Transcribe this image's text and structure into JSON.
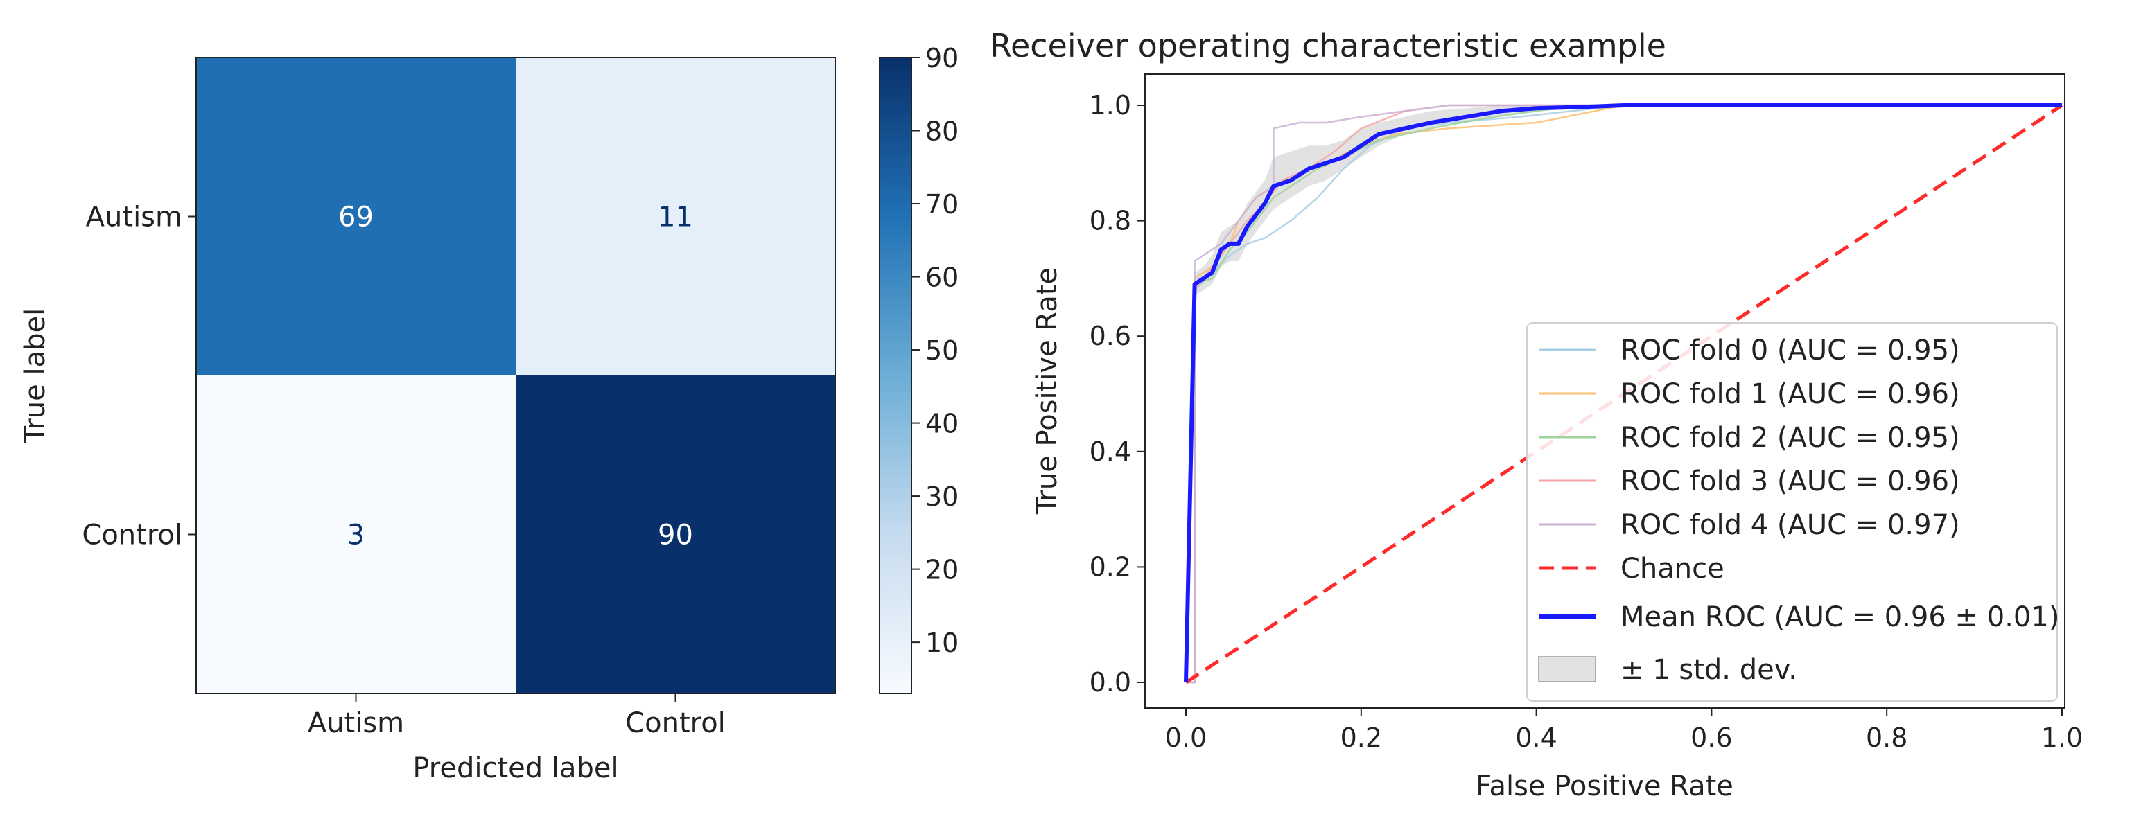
{
  "chart_data": [
    {
      "type": "heatmap",
      "title": "",
      "xlabel": "Predicted label",
      "ylabel": "True label",
      "x_categories": [
        "Autism",
        "Control"
      ],
      "y_categories": [
        "Autism",
        "Control"
      ],
      "values": [
        [
          69,
          11
        ],
        [
          3,
          90
        ]
      ],
      "colorbar": {
        "min": 3,
        "max": 90,
        "ticks": [
          10,
          20,
          30,
          40,
          50,
          60,
          70,
          80,
          90
        ]
      },
      "colormap": {
        "low": "#f7fbff",
        "high": "#08306b"
      }
    },
    {
      "type": "line",
      "title": "Receiver operating characteristic example",
      "xlabel": "False Positive Rate",
      "ylabel": "True Positive Rate",
      "xlim": [
        0.0,
        1.0
      ],
      "ylim": [
        0.0,
        1.0
      ],
      "xticks": [
        "0.0",
        "0.2",
        "0.4",
        "0.6",
        "0.8",
        "1.0"
      ],
      "yticks": [
        "0.0",
        "0.2",
        "0.4",
        "0.6",
        "0.8",
        "1.0"
      ],
      "legend_position": "lower-right",
      "series": [
        {
          "name": "ROC fold 0 (AUC = 0.95)",
          "color": "#a6cee3",
          "x": [
            0,
            0.01,
            0.01,
            0.03,
            0.05,
            0.07,
            0.09,
            0.12,
            0.15,
            0.18,
            0.21,
            0.25,
            0.3,
            0.38,
            0.5,
            1.0
          ],
          "y": [
            0,
            0,
            0.68,
            0.71,
            0.74,
            0.76,
            0.77,
            0.8,
            0.84,
            0.89,
            0.93,
            0.96,
            0.97,
            0.98,
            1.0,
            1.0
          ]
        },
        {
          "name": "ROC fold 1 (AUC = 0.96)",
          "color": "#fdbf6f",
          "x": [
            0,
            0.01,
            0.01,
            0.03,
            0.05,
            0.06,
            0.08,
            0.1,
            0.13,
            0.16,
            0.2,
            0.24,
            0.3,
            0.4,
            0.5,
            1.0
          ],
          "y": [
            0,
            0,
            0.7,
            0.72,
            0.76,
            0.8,
            0.84,
            0.86,
            0.88,
            0.9,
            0.93,
            0.95,
            0.96,
            0.97,
            1.0,
            1.0
          ]
        },
        {
          "name": "ROC fold 2 (AUC = 0.95)",
          "color": "#9ed49a",
          "x": [
            0,
            0.01,
            0.01,
            0.03,
            0.05,
            0.07,
            0.1,
            0.12,
            0.15,
            0.18,
            0.22,
            0.28,
            0.35,
            0.45,
            1.0
          ],
          "y": [
            0,
            0,
            0.69,
            0.7,
            0.75,
            0.78,
            0.84,
            0.86,
            0.89,
            0.91,
            0.94,
            0.96,
            0.98,
            1.0,
            1.0
          ]
        },
        {
          "name": "ROC fold 3 (AUC = 0.96)",
          "color": "#f4a6a6",
          "x": [
            0,
            0.01,
            0.01,
            0.03,
            0.05,
            0.07,
            0.09,
            0.11,
            0.14,
            0.17,
            0.2,
            0.25,
            0.3,
            0.4,
            1.0
          ],
          "y": [
            0,
            0,
            0.68,
            0.72,
            0.76,
            0.8,
            0.83,
            0.87,
            0.89,
            0.92,
            0.96,
            0.99,
            1.0,
            1.0,
            1.0
          ]
        },
        {
          "name": "ROC fold 4 (AUC = 0.97)",
          "color": "#cab2d6",
          "x": [
            0,
            0.01,
            0.01,
            0.02,
            0.04,
            0.06,
            0.08,
            0.1,
            0.1,
            0.13,
            0.16,
            0.2,
            0.25,
            0.3,
            1.0
          ],
          "y": [
            0,
            0,
            0.73,
            0.74,
            0.76,
            0.8,
            0.84,
            0.86,
            0.96,
            0.97,
            0.97,
            0.98,
            0.99,
            1.0,
            1.0
          ]
        },
        {
          "name": "Chance",
          "color": "#ff2a2a",
          "dashed": true,
          "x": [
            0,
            1
          ],
          "y": [
            0,
            1
          ]
        },
        {
          "name": "Mean ROC (AUC = 0.96 ± 0.01)",
          "color": "#1a1aff",
          "x": [
            0,
            0.01,
            0.02,
            0.03,
            0.04,
            0.05,
            0.06,
            0.07,
            0.08,
            0.09,
            0.1,
            0.12,
            0.14,
            0.16,
            0.18,
            0.2,
            0.22,
            0.25,
            0.28,
            0.32,
            0.36,
            0.4,
            0.45,
            0.5,
            0.6,
            0.7,
            0.8,
            0.9,
            1.0
          ],
          "y": [
            0,
            0.69,
            0.7,
            0.71,
            0.75,
            0.76,
            0.76,
            0.79,
            0.81,
            0.83,
            0.86,
            0.87,
            0.89,
            0.9,
            0.91,
            0.93,
            0.95,
            0.96,
            0.97,
            0.98,
            0.99,
            0.995,
            0.997,
            1.0,
            1.0,
            1.0,
            1.0,
            1.0,
            1.0
          ]
        }
      ],
      "std_band": {
        "name": "± 1 std. dev.",
        "color": "#bfbfbf",
        "x": [
          0,
          0.01,
          0.02,
          0.03,
          0.04,
          0.05,
          0.06,
          0.07,
          0.08,
          0.09,
          0.1,
          0.12,
          0.14,
          0.16,
          0.18,
          0.2,
          0.22,
          0.25,
          0.28,
          0.32,
          0.36,
          0.4,
          0.45,
          0.5,
          1.0
        ],
        "lower": [
          0,
          0.67,
          0.68,
          0.69,
          0.72,
          0.73,
          0.73,
          0.76,
          0.78,
          0.8,
          0.82,
          0.84,
          0.86,
          0.87,
          0.89,
          0.91,
          0.93,
          0.95,
          0.96,
          0.97,
          0.98,
          0.99,
          0.994,
          1.0,
          1.0
        ],
        "upper": [
          0,
          0.71,
          0.72,
          0.74,
          0.78,
          0.79,
          0.8,
          0.83,
          0.85,
          0.87,
          0.91,
          0.92,
          0.93,
          0.93,
          0.94,
          0.96,
          0.97,
          0.98,
          0.99,
          0.995,
          1.0,
          1.0,
          1.0,
          1.0,
          1.0
        ]
      }
    }
  ]
}
